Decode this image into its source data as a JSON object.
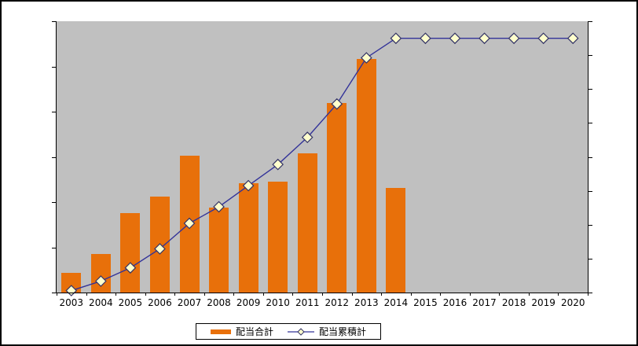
{
  "legend": {
    "series1_label": "配当合計",
    "series2_label": "配当累積計"
  },
  "colors": {
    "bar": "#E8700A",
    "line": "#333399",
    "marker_fill": "#FFFFCC",
    "marker_stroke": "#333366",
    "plot_bg": "#C0C0C0",
    "axis": "#000000"
  },
  "chart_data": {
    "type": "bar",
    "title": "",
    "xlabel": "",
    "ylabel": "",
    "categories": [
      "2003",
      "2004",
      "2005",
      "2006",
      "2007",
      "2008",
      "2009",
      "2010",
      "2011",
      "2012",
      "2013",
      "2014",
      "2015",
      "2016",
      "2017",
      "2018",
      "2019",
      "2020"
    ],
    "series": [
      {
        "name": "配当合計",
        "type": "bar",
        "axis": "left",
        "values_fraction_of_axis": [
          0.072,
          0.143,
          0.293,
          0.355,
          0.504,
          0.314,
          0.404,
          0.409,
          0.514,
          0.698,
          0.862,
          0.386,
          null,
          null,
          null,
          null,
          null,
          null
        ]
      },
      {
        "name": "配当累積計",
        "type": "line",
        "axis": "right",
        "values_fraction_of_axis": [
          0.007,
          0.042,
          0.091,
          0.161,
          0.255,
          0.316,
          0.394,
          0.472,
          0.572,
          0.695,
          0.865,
          0.937,
          0.937,
          0.937,
          0.937,
          0.937,
          0.937,
          0.937
        ]
      }
    ],
    "left_axis": {
      "tick_divisions": 6,
      "numeric_labels_visible": false
    },
    "right_axis": {
      "tick_divisions": 8,
      "numeric_labels_visible": false
    },
    "grid": false,
    "legend_position": "bottom-center",
    "plot_background": "#C0C0C0"
  }
}
